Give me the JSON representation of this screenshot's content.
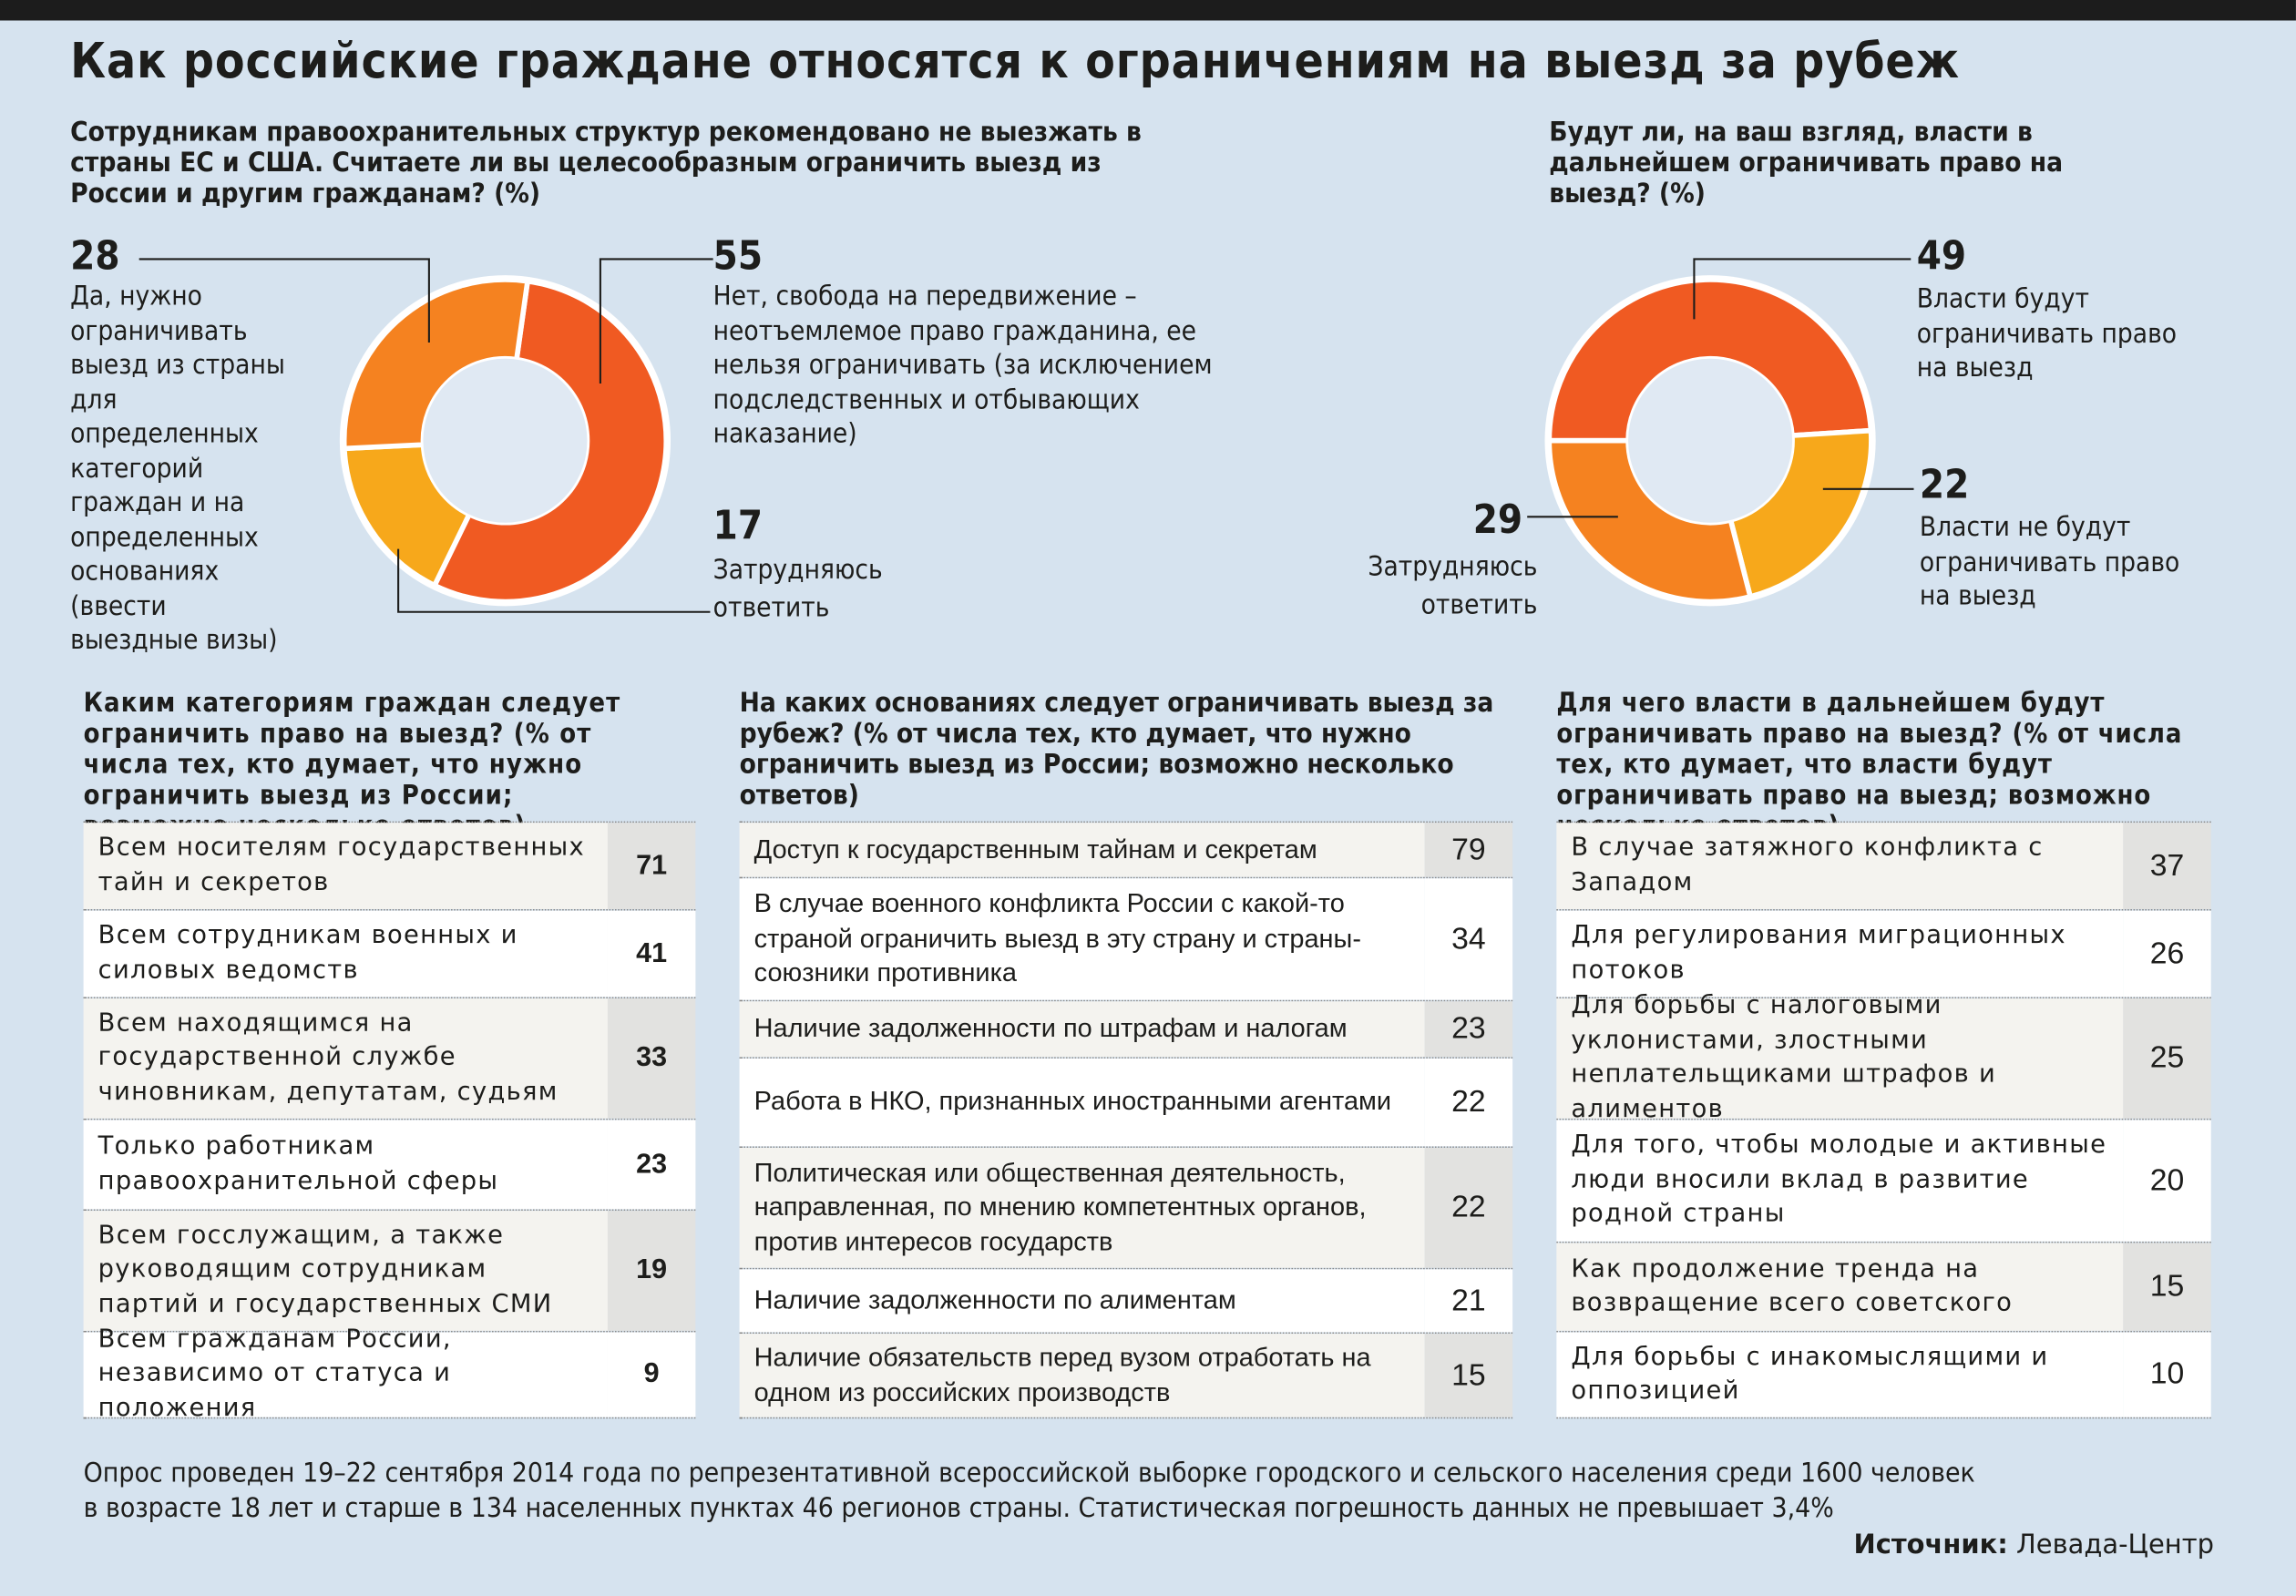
{
  "title": "Как российские граждане относятся к ограничениям на выезд за рубеж",
  "colors": {
    "background": "#d6e3ef",
    "red": "#f05a22",
    "orange": "#f58220",
    "yellow": "#f7a81b",
    "hole": "#e0e9f3"
  },
  "chart_data": [
    {
      "type": "pie",
      "title": "Сотрудникам правоохранительных структур рекомендовано не выезжать в страны ЕС и США. Считаете ли вы целесообразным ограничить выезд из России и другим гражданам? (%)",
      "slices": [
        {
          "value": 55,
          "label": "Нет, свобода на передвижение – неотъемлемое право гражданина, ее нельзя ограничивать (за исключением подследственных и отбывающих наказание)",
          "color": "#f05a22"
        },
        {
          "value": 17,
          "label": "Затрудняюсь ответить",
          "color": "#f7a81b"
        },
        {
          "value": 28,
          "label": "Да, нужно ограничивать выезд из страны для определенных категорий граждан и на определенных основаниях (ввести выездные визы)",
          "color": "#f58220"
        }
      ]
    },
    {
      "type": "pie",
      "title": "Будут ли, на ваш взгляд, власти в дальнейшем ограничивать право на выезд? (%)",
      "slices": [
        {
          "value": 49,
          "label": "Власти будут ограничивать право на выезд",
          "color": "#f05a22"
        },
        {
          "value": 22,
          "label": "Власти не будут ограничивать право на выезд",
          "color": "#f7a81b"
        },
        {
          "value": 29,
          "label": "Затрудняюсь ответить",
          "color": "#f58220"
        }
      ]
    },
    {
      "type": "table",
      "title": "Каким категориям граждан следует ограничить право на выезд? (% от числа тех, кто думает, что нужно ограничить выезд из России; возможно несколько ответов)",
      "rows": [
        {
          "label": "Всем носителям государственных тайн и секретов",
          "value": 71
        },
        {
          "label": "Всем сотрудникам военных и силовых ведомств",
          "value": 41
        },
        {
          "label": "Всем находящимся на государственной службе чиновникам, депутатам, судьям",
          "value": 33
        },
        {
          "label": "Только работникам правоохранительной сферы",
          "value": 23
        },
        {
          "label": "Всем госслужащим, а также руководящим сотрудникам партий и государственных СМИ",
          "value": 19
        },
        {
          "label": "Всем гражданам России, независимо от статуса и положения",
          "value": 9
        }
      ]
    },
    {
      "type": "table",
      "title": "На каких основаниях следует ограничивать выезд за рубеж? (% от числа тех, кто думает, что нужно ограничить выезд из России; возможно несколько ответов)",
      "rows": [
        {
          "label": "Доступ к государственным тайнам и секретам",
          "value": 79
        },
        {
          "label": "В случае военного конфликта России с какой-то страной ограничить выезд в эту страну и страны-союзники противника",
          "value": 34
        },
        {
          "label": "Наличие задолженности по штрафам и налогам",
          "value": 23
        },
        {
          "label": "Работа в НКО, признанных иностранными агентами",
          "value": 22
        },
        {
          "label": "Политическая или общественная деятельность, направленная, по мнению компетентных органов, против интересов государств",
          "value": 22
        },
        {
          "label": "Наличие задолженности по алиментам",
          "value": 21
        },
        {
          "label": "Наличие обязательств перед вузом отработать на одном из российских производств",
          "value": 15
        }
      ]
    },
    {
      "type": "table",
      "title": "Для чего власти в дальнейшем будут ограничивать право на выезд? (% от числа тех, кто думает, что власти будут ограничивать право на выезд; возможно несколько ответов)",
      "rows": [
        {
          "label": "В случае затяжного конфликта с Западом",
          "value": 37
        },
        {
          "label": "Для регулирования миграционных потоков",
          "value": 26
        },
        {
          "label": "Для борьбы с налоговыми уклонистами, злостными неплательщиками штрафов и алиментов",
          "value": 25
        },
        {
          "label": "Для того, чтобы молодые и активные люди вносили вклад в развитие родной страны",
          "value": 20
        },
        {
          "label": "Как продолжение тренда на возвращение всего советского",
          "value": 15
        },
        {
          "label": "Для борьбы с инакомыслящими и оппозицией",
          "value": 10
        }
      ]
    }
  ],
  "footer": {
    "note_line1": "Опрос проведен 19–22 сентября 2014 года по репрезентативной всероссийской выборке городского и сельского населения среди 1600 человек",
    "note_line2": "в возрасте 18 лет и старше в 134 населенных пунктах 46 регионов страны. Статистическая погрешность данных не превышает 3,4%",
    "source_label": "Источник:",
    "source": "Левада-Центр"
  }
}
